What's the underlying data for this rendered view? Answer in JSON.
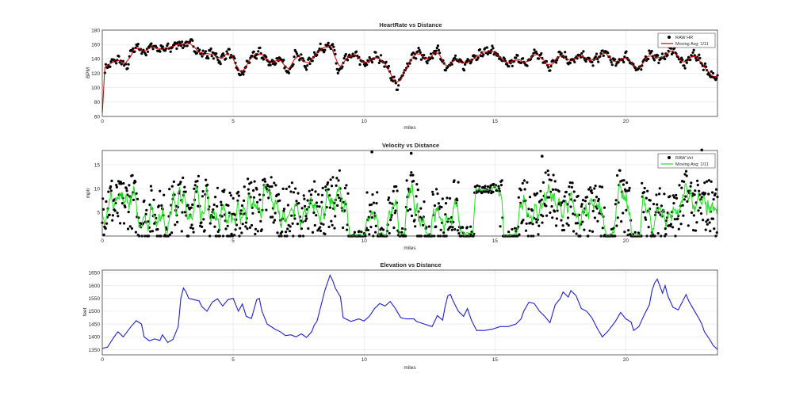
{
  "chart_data": [
    {
      "type": "line",
      "title": "HeartRate vs Distance",
      "xlabel": "miles",
      "ylabel": "BPM",
      "xlim": [
        0,
        23.5
      ],
      "ylim": [
        60,
        180
      ],
      "xticks": [
        0,
        5,
        10,
        15,
        20
      ],
      "yticks": [
        60,
        80,
        100,
        120,
        140,
        160,
        180
      ],
      "grid": true,
      "legend_position": "top-right",
      "legend": [
        "RAW HR",
        "Moving Avg: 1/11"
      ],
      "colors": {
        "raw": "#000000",
        "avg": "#cc0000"
      },
      "series": [
        {
          "name": "RAW HR",
          "style": "markers",
          "approx_range": [
            98,
            166
          ]
        },
        {
          "name": "Moving Avg: 1/11",
          "style": "line"
        }
      ],
      "start_points": [
        [
          0,
          65
        ],
        [
          0.03,
          82
        ],
        [
          0.07,
          110
        ]
      ],
      "anchors": [
        [
          0.1,
          125
        ],
        [
          0.3,
          133
        ],
        [
          0.6,
          140
        ],
        [
          0.8,
          134
        ],
        [
          0.95,
          125
        ],
        [
          1.1,
          150
        ],
        [
          1.3,
          158
        ],
        [
          1.6,
          148
        ],
        [
          1.9,
          160
        ],
        [
          2.2,
          152
        ],
        [
          2.6,
          155
        ],
        [
          2.9,
          162
        ],
        [
          3.2,
          160
        ],
        [
          3.4,
          163
        ],
        [
          3.6,
          152
        ],
        [
          3.9,
          146
        ],
        [
          4.2,
          148
        ],
        [
          4.5,
          138
        ],
        [
          4.8,
          150
        ],
        [
          5.0,
          140
        ],
        [
          5.3,
          115
        ],
        [
          5.6,
          138
        ],
        [
          6.0,
          150
        ],
        [
          6.4,
          134
        ],
        [
          6.8,
          140
        ],
        [
          7.1,
          120
        ],
        [
          7.4,
          150
        ],
        [
          7.8,
          130
        ],
        [
          8.2,
          150
        ],
        [
          8.6,
          160
        ],
        [
          8.9,
          150
        ],
        [
          9.0,
          118
        ],
        [
          9.3,
          140
        ],
        [
          9.7,
          146
        ],
        [
          10.0,
          130
        ],
        [
          10.4,
          144
        ],
        [
          10.8,
          136
        ],
        [
          11.1,
          112
        ],
        [
          11.3,
          100
        ],
        [
          11.5,
          120
        ],
        [
          11.8,
          142
        ],
        [
          12.1,
          150
        ],
        [
          12.4,
          134
        ],
        [
          12.8,
          155
        ],
        [
          13.1,
          128
        ],
        [
          13.5,
          140
        ],
        [
          13.8,
          130
        ],
        [
          14.1,
          142
        ],
        [
          14.5,
          148
        ],
        [
          14.9,
          153
        ],
        [
          15.2,
          140
        ],
        [
          15.5,
          130
        ],
        [
          15.9,
          142
        ],
        [
          16.2,
          130
        ],
        [
          16.5,
          150
        ],
        [
          16.8,
          140
        ],
        [
          17.1,
          128
        ],
        [
          17.5,
          150
        ],
        [
          17.9,
          135
        ],
        [
          18.3,
          145
        ],
        [
          18.7,
          135
        ],
        [
          19.2,
          150
        ],
        [
          19.6,
          132
        ],
        [
          20.0,
          145
        ],
        [
          20.5,
          122
        ],
        [
          20.9,
          150
        ],
        [
          21.3,
          138
        ],
        [
          21.8,
          155
        ],
        [
          22.2,
          130
        ],
        [
          22.6,
          148
        ],
        [
          23.0,
          130
        ],
        [
          23.2,
          120
        ],
        [
          23.4,
          112
        ]
      ]
    },
    {
      "type": "scatter",
      "title": "Velocity vs Distance",
      "xlabel": "miles",
      "ylabel": "mph",
      "xlim": [
        0,
        23.5
      ],
      "ylim": [
        0,
        18
      ],
      "xticks": [
        0,
        5,
        10,
        15,
        20
      ],
      "yticks": [
        5,
        10,
        15
      ],
      "grid": true,
      "legend_position": "top-right",
      "legend": [
        "RAW Vel",
        "Moving Avg: 1/11"
      ],
      "colors": {
        "raw": "#000000",
        "avg": "#22dd22"
      },
      "series": [
        {
          "name": "RAW Vel",
          "style": "markers",
          "approx_range": [
            0,
            18
          ]
        },
        {
          "name": "Moving Avg: 1/11",
          "style": "line",
          "approx_range": [
            1,
            17
          ]
        }
      ],
      "outliers": [
        [
          10.3,
          17.7
        ],
        [
          11.8,
          17.4
        ],
        [
          16.8,
          16.8
        ],
        [
          22.9,
          18.1
        ]
      ]
    },
    {
      "type": "line",
      "title": "Elevation vs Distance",
      "xlabel": "miles",
      "ylabel": "feet",
      "xlim": [
        0,
        23.5
      ],
      "ylim": [
        1330,
        1660
      ],
      "xticks": [
        0,
        5,
        10,
        15,
        20
      ],
      "yticks": [
        1350,
        1400,
        1450,
        1500,
        1550,
        1600,
        1650
      ],
      "grid": true,
      "colors": {
        "line": "#1f1fcc"
      },
      "series": [
        {
          "points": [
            [
              0,
              1355
            ],
            [
              0.2,
              1360
            ],
            [
              0.45,
              1400
            ],
            [
              0.6,
              1420
            ],
            [
              0.8,
              1400
            ],
            [
              1.1,
              1440
            ],
            [
              1.3,
              1463
            ],
            [
              1.5,
              1450
            ],
            [
              1.6,
              1400
            ],
            [
              1.8,
              1385
            ],
            [
              2.0,
              1392
            ],
            [
              2.2,
              1386
            ],
            [
              2.3,
              1408
            ],
            [
              2.5,
              1378
            ],
            [
              2.7,
              1390
            ],
            [
              2.9,
              1440
            ],
            [
              3.0,
              1550
            ],
            [
              3.1,
              1590
            ],
            [
              3.2,
              1575
            ],
            [
              3.3,
              1550
            ],
            [
              3.5,
              1545
            ],
            [
              3.7,
              1540
            ],
            [
              3.8,
              1518
            ],
            [
              4.0,
              1500
            ],
            [
              4.2,
              1535
            ],
            [
              4.4,
              1548
            ],
            [
              4.6,
              1520
            ],
            [
              4.8,
              1545
            ],
            [
              5.0,
              1550
            ],
            [
              5.2,
              1500
            ],
            [
              5.35,
              1528
            ],
            [
              5.5,
              1480
            ],
            [
              5.7,
              1472
            ],
            [
              5.9,
              1545
            ],
            [
              6.0,
              1550
            ],
            [
              6.1,
              1500
            ],
            [
              6.3,
              1450
            ],
            [
              6.6,
              1430
            ],
            [
              6.8,
              1420
            ],
            [
              7.0,
              1405
            ],
            [
              7.2,
              1408
            ],
            [
              7.4,
              1400
            ],
            [
              7.6,
              1412
            ],
            [
              7.8,
              1398
            ],
            [
              8.0,
              1420
            ],
            [
              8.1,
              1447
            ],
            [
              8.2,
              1460
            ],
            [
              8.3,
              1500
            ],
            [
              8.5,
              1580
            ],
            [
              8.7,
              1640
            ],
            [
              8.8,
              1620
            ],
            [
              8.9,
              1590
            ],
            [
              9.1,
              1555
            ],
            [
              9.2,
              1475
            ],
            [
              9.5,
              1460
            ],
            [
              9.8,
              1470
            ],
            [
              10.0,
              1462
            ],
            [
              10.2,
              1480
            ],
            [
              10.4,
              1510
            ],
            [
              10.6,
              1530
            ],
            [
              10.8,
              1520
            ],
            [
              11.0,
              1538
            ],
            [
              11.2,
              1510
            ],
            [
              11.4,
              1475
            ],
            [
              11.6,
              1470
            ],
            [
              11.9,
              1470
            ],
            [
              12.0,
              1460
            ],
            [
              12.3,
              1450
            ],
            [
              12.6,
              1440
            ],
            [
              12.8,
              1483
            ],
            [
              13.0,
              1465
            ],
            [
              13.1,
              1520
            ],
            [
              13.2,
              1560
            ],
            [
              13.3,
              1565
            ],
            [
              13.4,
              1540
            ],
            [
              13.6,
              1500
            ],
            [
              13.8,
              1480
            ],
            [
              13.95,
              1510
            ],
            [
              14.1,
              1465
            ],
            [
              14.3,
              1425
            ],
            [
              14.6,
              1425
            ],
            [
              14.9,
              1430
            ],
            [
              15.2,
              1440
            ],
            [
              15.5,
              1440
            ],
            [
              15.8,
              1450
            ],
            [
              16.0,
              1470
            ],
            [
              16.1,
              1500
            ],
            [
              16.3,
              1535
            ],
            [
              16.5,
              1530
            ],
            [
              16.7,
              1500
            ],
            [
              16.9,
              1480
            ],
            [
              17.1,
              1455
            ],
            [
              17.3,
              1525
            ],
            [
              17.5,
              1550
            ],
            [
              17.6,
              1575
            ],
            [
              17.8,
              1555
            ],
            [
              17.9,
              1580
            ],
            [
              18.1,
              1560
            ],
            [
              18.3,
              1510
            ],
            [
              18.5,
              1500
            ],
            [
              18.7,
              1475
            ],
            [
              18.9,
              1435
            ],
            [
              19.1,
              1400
            ],
            [
              19.3,
              1420
            ],
            [
              19.6,
              1460
            ],
            [
              19.8,
              1495
            ],
            [
              20.0,
              1470
            ],
            [
              20.2,
              1458
            ],
            [
              20.3,
              1425
            ],
            [
              20.5,
              1440
            ],
            [
              20.7,
              1485
            ],
            [
              20.9,
              1525
            ],
            [
              21.0,
              1580
            ],
            [
              21.1,
              1610
            ],
            [
              21.2,
              1625
            ],
            [
              21.4,
              1570
            ],
            [
              21.5,
              1600
            ],
            [
              21.6,
              1560
            ],
            [
              21.8,
              1515
            ],
            [
              22.0,
              1505
            ],
            [
              22.1,
              1525
            ],
            [
              22.3,
              1565
            ],
            [
              22.4,
              1540
            ],
            [
              22.6,
              1505
            ],
            [
              22.8,
              1470
            ],
            [
              22.9,
              1450
            ],
            [
              23.0,
              1420
            ],
            [
              23.2,
              1390
            ],
            [
              23.35,
              1365
            ],
            [
              23.5,
              1352
            ]
          ]
        }
      ]
    }
  ]
}
